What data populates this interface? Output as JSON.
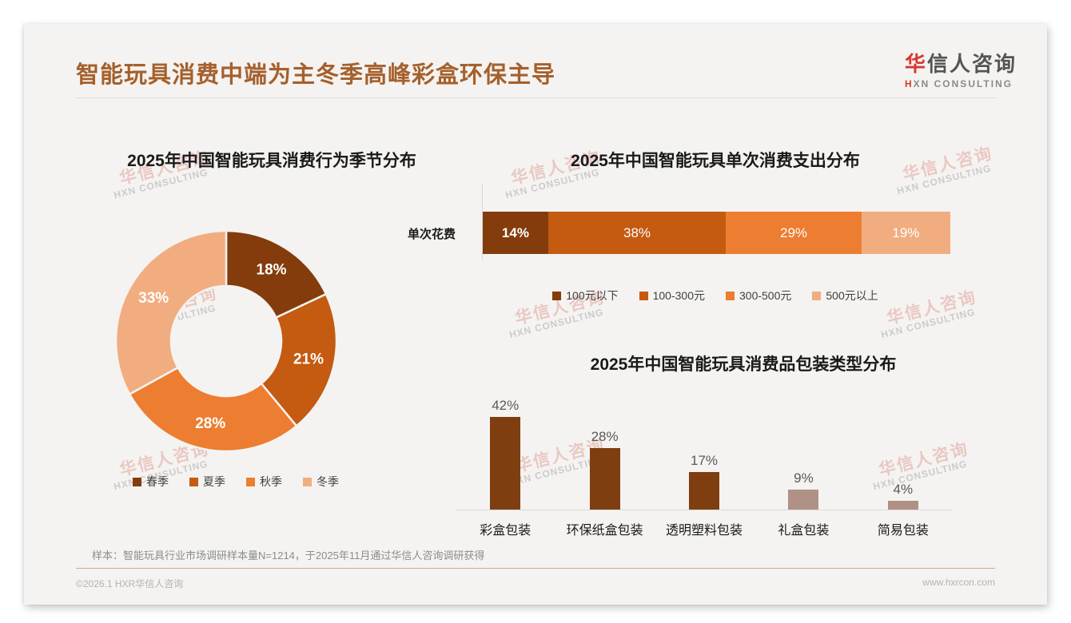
{
  "header": {
    "title": "智能玩具消费中端为主冬季高峰彩盒环保主导",
    "logo": {
      "zh_red": "华",
      "zh_rest": "信人咨询",
      "en_red": "H",
      "en_rest": "XN CONSULTING"
    }
  },
  "watermark": {
    "line1": "华信人咨询",
    "line2": "HXN CONSULTING"
  },
  "chart_data": [
    {
      "type": "pie",
      "donut": true,
      "title": "2025年中国智能玩具消费行为季节分布",
      "categories": [
        "春季",
        "夏季",
        "秋季",
        "冬季"
      ],
      "values": [
        18,
        21,
        28,
        33
      ],
      "labels": [
        "18%",
        "21%",
        "28%",
        "33%"
      ],
      "colors": [
        "#843C0C",
        "#C55A11",
        "#ED7D31",
        "#F1AD80"
      ],
      "legend_position": "bottom"
    },
    {
      "type": "bar",
      "orientation": "horizontal-stacked",
      "title": "2025年中国智能玩具单次消费支出分布",
      "category_label": "单次花费",
      "series": [
        {
          "name": "100元以下",
          "value": 14,
          "label": "14%",
          "color": "#843C0C"
        },
        {
          "name": "100-300元",
          "value": 38,
          "label": "38%",
          "color": "#C55A11"
        },
        {
          "name": "300-500元",
          "value": 29,
          "label": "29%",
          "color": "#ED7D31"
        },
        {
          "name": "500元以上",
          "value": 19,
          "label": "19%",
          "color": "#F1AD80"
        }
      ],
      "xlim": [
        0,
        100
      ],
      "legend_position": "bottom"
    },
    {
      "type": "bar",
      "title": "2025年中国智能玩具消费品包装类型分布",
      "categories": [
        "彩盒包装",
        "环保纸盒包装",
        "透明塑料包装",
        "礼盒包装",
        "简易包装"
      ],
      "values": [
        42,
        28,
        17,
        9,
        4
      ],
      "labels": [
        "42%",
        "28%",
        "17%",
        "9%",
        "4%"
      ],
      "colors": [
        "#7F3E10",
        "#7F3E10",
        "#7F3E10",
        "#AF9186",
        "#AF9186"
      ],
      "ylim": [
        0,
        45
      ],
      "grid": false
    }
  ],
  "footnote": "样本：智能玩具行业市场调研样本量N=1214，于2025年11月通过华信人咨询调研获得",
  "footer": {
    "left": "©2026.1 HXR华信人咨询",
    "right": "www.hxrcon.com"
  }
}
